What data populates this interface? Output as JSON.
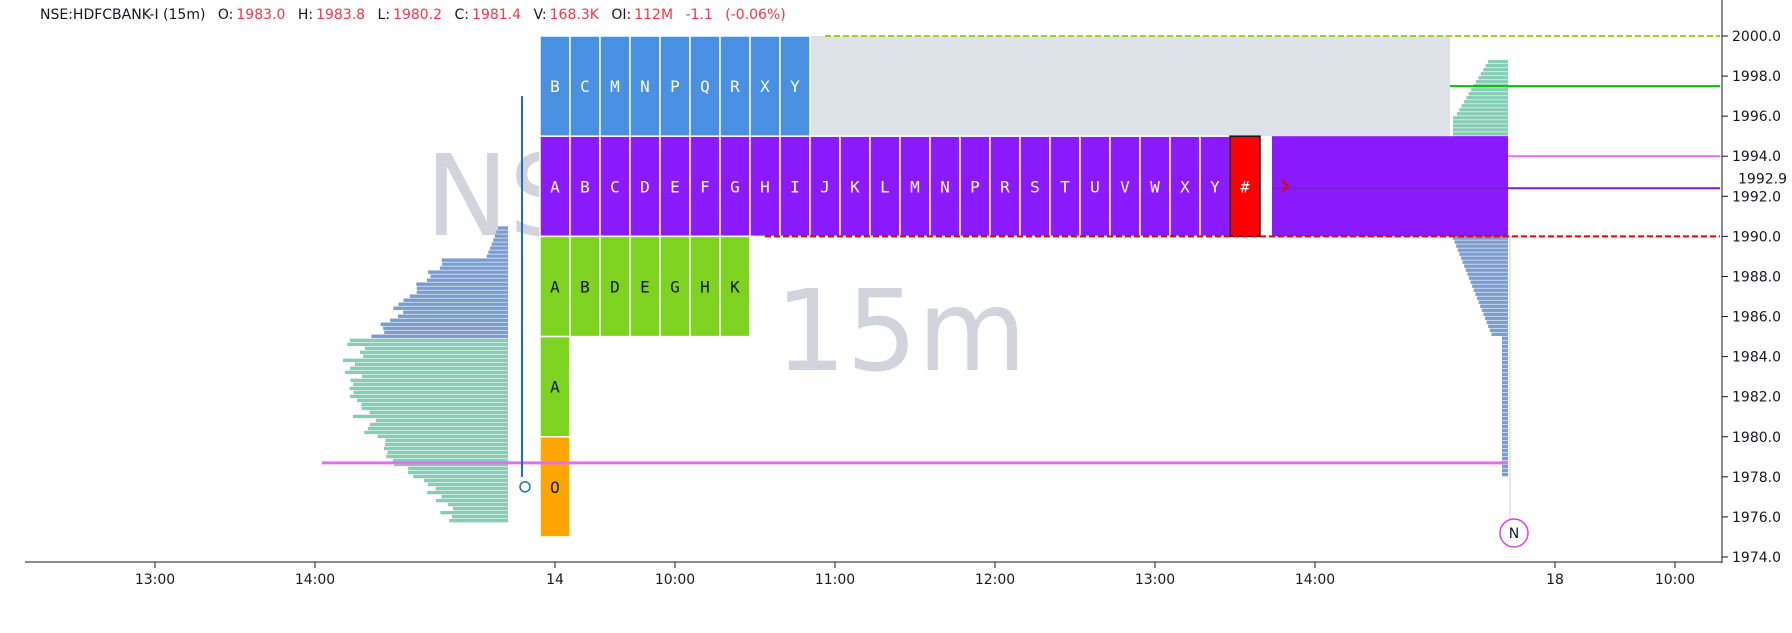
{
  "legend": {
    "symbol": "NSE:HDFCBANK-I (15m)",
    "open_label": "O:",
    "open": "1983.0",
    "high_label": "H:",
    "high": "1983.8",
    "low_label": "L:",
    "low": "1980.2",
    "close_label": "C:",
    "close": "1981.4",
    "volume_label": "V:",
    "volume": "168.3K",
    "oi_label": "OI:",
    "oi": "112M",
    "change": "-1.1",
    "change_pct": "(-0.06%)"
  },
  "watermark": {
    "symbol_partial": "NS",
    "interval": "15m"
  },
  "colors": {
    "blue_block": "#4a90e2",
    "purple_block": "#8c1aff",
    "green_block": "#7ed321",
    "orange_block": "#ffa500",
    "red_block": "#ff0000",
    "value_area": "#dde1e8",
    "hist_blue": "#7b9ccf",
    "hist_teal": "#86cdb5",
    "magenta_line": "#e070ef",
    "red_line": "#e60000",
    "green_line": "#00c000",
    "yellow_green_line": "#a0d020"
  },
  "chart_data": {
    "type": "market_profile",
    "y_axis": {
      "min": 1974.0,
      "max": 2001.0,
      "ticks": [
        "2000.0",
        "1998.0",
        "1996.0",
        "1994.0",
        "1992.0",
        "1990.0",
        "1988.0",
        "1986.0",
        "1984.0",
        "1982.0",
        "1980.0",
        "1978.0",
        "1976.0",
        "1974.0"
      ]
    },
    "price_label": "1992.9",
    "x_axis": {
      "ticks": [
        "13:00",
        "14:00",
        "14",
        "10:00",
        "11:00",
        "12:00",
        "13:00",
        "14:00",
        "18",
        "10:00"
      ]
    },
    "tpo_rows": [
      {
        "price_low": 1995.0,
        "price_high": 2000.0,
        "color": "blue",
        "letters": [
          "B",
          "C",
          "M",
          "N",
          "P",
          "Q",
          "R",
          "X",
          "Y"
        ]
      },
      {
        "price_low": 1990.0,
        "price_high": 1995.0,
        "color": "purple",
        "letters": [
          "A",
          "B",
          "C",
          "D",
          "E",
          "F",
          "G",
          "H",
          "I",
          "J",
          "K",
          "L",
          "M",
          "N",
          "P",
          "R",
          "S",
          "T",
          "U",
          "V",
          "W",
          "X",
          "Y"
        ],
        "current_marker": "#"
      },
      {
        "price_low": 1985.0,
        "price_high": 1990.0,
        "color": "green",
        "letters": [
          "A",
          "B",
          "D",
          "E",
          "G",
          "H",
          "K"
        ]
      },
      {
        "price_low": 1980.0,
        "price_high": 1985.0,
        "color": "green",
        "letters": [
          "A"
        ]
      },
      {
        "price_low": 1975.0,
        "price_high": 1980.0,
        "color": "orange",
        "letters": [
          "O"
        ]
      }
    ],
    "horizontal_lines": [
      {
        "price": 2000.0,
        "color": "yellow_green",
        "style": "dashed"
      },
      {
        "price": 1997.5,
        "color": "green",
        "style": "solid"
      },
      {
        "price": 1994.0,
        "color": "magenta",
        "style": "solid"
      },
      {
        "price": 1992.4,
        "color": "purple",
        "style": "solid"
      },
      {
        "price": 1990.0,
        "color": "red",
        "style": "dashed"
      },
      {
        "price": 1978.7,
        "color": "magenta",
        "style": "solid"
      }
    ],
    "marker": {
      "label": "N"
    }
  }
}
